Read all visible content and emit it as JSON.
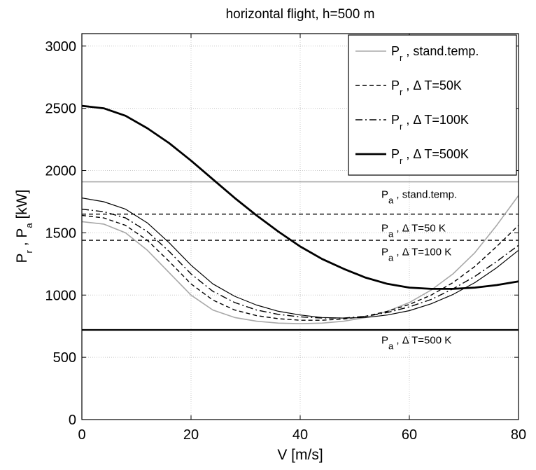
{
  "chart_data": {
    "type": "line",
    "title": "horizontal flight, h=500 m",
    "xlabel": "V [m/s]",
    "ylabel": {
      "parts": [
        {
          "text": "P"
        },
        {
          "text": "r",
          "sub": true
        },
        {
          "text": " , P"
        },
        {
          "text": "a",
          "sub": true
        },
        {
          "text": "  [kW]"
        }
      ]
    },
    "xlim": [
      0,
      80
    ],
    "ylim": [
      0,
      3100
    ],
    "xticks": [
      0,
      20,
      40,
      60,
      80
    ],
    "yticks": [
      0,
      500,
      1000,
      1500,
      2000,
      2500,
      3000
    ],
    "grid": true,
    "legend_position": "top-right",
    "series": [
      {
        "legend": {
          "main": "P",
          "sub": "r",
          "rest": " , stand.temp."
        },
        "color": "#a8a8a8",
        "dash": "solid",
        "width": 1.6,
        "points": [
          [
            0,
            1590
          ],
          [
            4,
            1570
          ],
          [
            8,
            1500
          ],
          [
            12,
            1360
          ],
          [
            16,
            1180
          ],
          [
            20,
            1000
          ],
          [
            24,
            880
          ],
          [
            28,
            820
          ],
          [
            32,
            790
          ],
          [
            36,
            775
          ],
          [
            40,
            770
          ],
          [
            44,
            775
          ],
          [
            48,
            790
          ],
          [
            52,
            820
          ],
          [
            56,
            870
          ],
          [
            60,
            940
          ],
          [
            64,
            1040
          ],
          [
            68,
            1170
          ],
          [
            72,
            1340
          ],
          [
            76,
            1560
          ],
          [
            80,
            1800
          ]
        ]
      },
      {
        "legend": {
          "main": "P",
          "sub": "r",
          "rest": " , Δ T=50K"
        },
        "color": "#000000",
        "dash": "6,4",
        "width": 1.4,
        "points": [
          [
            0,
            1640
          ],
          [
            4,
            1620
          ],
          [
            8,
            1560
          ],
          [
            12,
            1440
          ],
          [
            16,
            1270
          ],
          [
            20,
            1090
          ],
          [
            24,
            960
          ],
          [
            28,
            880
          ],
          [
            32,
            835
          ],
          [
            36,
            810
          ],
          [
            40,
            798
          ],
          [
            44,
            798
          ],
          [
            48,
            808
          ],
          [
            52,
            830
          ],
          [
            56,
            870
          ],
          [
            60,
            925
          ],
          [
            64,
            1000
          ],
          [
            68,
            1100
          ],
          [
            72,
            1230
          ],
          [
            76,
            1390
          ],
          [
            80,
            1560
          ]
        ]
      },
      {
        "legend": {
          "main": "P",
          "sub": "r",
          "rest": " , Δ T=100K"
        },
        "color": "#000000",
        "dash": "10,4,2,4",
        "width": 1.4,
        "points": [
          [
            0,
            1690
          ],
          [
            4,
            1670
          ],
          [
            8,
            1620
          ],
          [
            12,
            1510
          ],
          [
            16,
            1350
          ],
          [
            20,
            1170
          ],
          [
            24,
            1030
          ],
          [
            28,
            940
          ],
          [
            32,
            880
          ],
          [
            36,
            845
          ],
          [
            40,
            825
          ],
          [
            44,
            815
          ],
          [
            48,
            815
          ],
          [
            52,
            830
          ],
          [
            56,
            860
          ],
          [
            60,
            905
          ],
          [
            64,
            965
          ],
          [
            68,
            1050
          ],
          [
            72,
            1150
          ],
          [
            76,
            1270
          ],
          [
            80,
            1400
          ]
        ]
      },
      {
        "legend": {
          "main": "P",
          "sub": "r",
          "rest": " , Δ T=500K"
        },
        "color": "#000000",
        "dash": "solid",
        "width": 2.8,
        "points": [
          [
            0,
            2520
          ],
          [
            4,
            2500
          ],
          [
            8,
            2440
          ],
          [
            12,
            2340
          ],
          [
            16,
            2220
          ],
          [
            20,
            2080
          ],
          [
            24,
            1930
          ],
          [
            28,
            1780
          ],
          [
            32,
            1640
          ],
          [
            36,
            1510
          ],
          [
            40,
            1390
          ],
          [
            44,
            1290
          ],
          [
            48,
            1210
          ],
          [
            52,
            1140
          ],
          [
            56,
            1090
          ],
          [
            60,
            1060
          ],
          [
            64,
            1050
          ],
          [
            68,
            1050
          ],
          [
            72,
            1060
          ],
          [
            76,
            1080
          ],
          [
            80,
            1110
          ]
        ]
      },
      {
        "color": "#000000",
        "dash": "solid",
        "width": 1.2,
        "points": [
          [
            0,
            1780
          ],
          [
            4,
            1750
          ],
          [
            8,
            1690
          ],
          [
            12,
            1580
          ],
          [
            16,
            1420
          ],
          [
            20,
            1240
          ],
          [
            24,
            1090
          ],
          [
            28,
            990
          ],
          [
            32,
            920
          ],
          [
            36,
            870
          ],
          [
            40,
            840
          ],
          [
            44,
            820
          ],
          [
            48,
            815
          ],
          [
            52,
            820
          ],
          [
            56,
            840
          ],
          [
            60,
            875
          ],
          [
            64,
            930
          ],
          [
            68,
            1005
          ],
          [
            72,
            1100
          ],
          [
            76,
            1220
          ],
          [
            80,
            1360
          ]
        ]
      }
    ],
    "hlines": [
      {
        "y": 1910,
        "label_main": "P",
        "label_sub": "a",
        "label_rest": " , stand.temp.",
        "label_y": 1780,
        "color": "#a8a8a8",
        "dash": "solid",
        "width": 1.6
      },
      {
        "y": 1650,
        "label_main": "P",
        "label_sub": "a",
        "label_rest": " , Δ T=50 K",
        "label_y": 1510,
        "color": "#000000",
        "dash": "6,4",
        "width": 1.4
      },
      {
        "y": 1440,
        "label_main": "P",
        "label_sub": "a",
        "label_rest": " , Δ T=100 K",
        "label_y": 1320,
        "color": "#000000",
        "dash": "6,4",
        "width": 1.4
      },
      {
        "y": 720,
        "label_main": "P",
        "label_sub": "a",
        "label_rest": " , Δ T=500 K",
        "label_y": 610,
        "color": "#000000",
        "dash": "solid",
        "width": 2.2
      }
    ]
  }
}
